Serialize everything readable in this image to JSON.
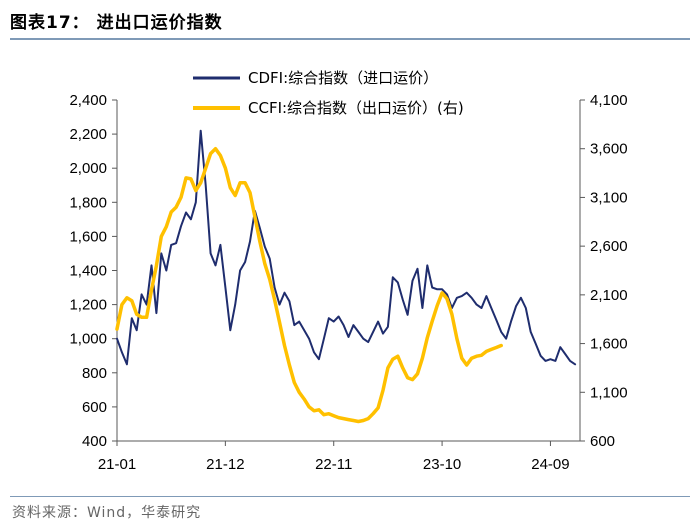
{
  "header": {
    "title": "图表17：  进出口运价指数"
  },
  "footer": {
    "source": "资料来源：Wind，华泰研究"
  },
  "chart_data": {
    "type": "line",
    "title": "进出口运价指数",
    "xlabel": "",
    "x_tick_labels": [
      "21-01",
      "21-12",
      "22-11",
      "23-10",
      "24-09"
    ],
    "x_tick_index": [
      0,
      11,
      22,
      33,
      44
    ],
    "x_end_index": 47,
    "y_left": {
      "lim": [
        400,
        2400
      ],
      "ticks": [
        400,
        600,
        800,
        1000,
        1200,
        1400,
        1600,
        1800,
        2000,
        2200,
        2400
      ],
      "tick_labels": [
        "400",
        "600",
        "800",
        "1,000",
        "1,200",
        "1,400",
        "1,600",
        "1,800",
        "2,000",
        "2,200",
        "2,400"
      ]
    },
    "y_right": {
      "lim": [
        600,
        4100
      ],
      "ticks": [
        600,
        1100,
        1600,
        2100,
        2600,
        3100,
        3600,
        4100
      ],
      "tick_labels": [
        "600",
        "1,100",
        "1,600",
        "2,100",
        "2,600",
        "3,100",
        "3,600",
        "4,100"
      ]
    },
    "legend": {
      "placement": "top-center"
    },
    "series": [
      {
        "name": "CDFI:综合指数（进口运价）",
        "axis": "left",
        "color": "#1f2d6e",
        "points": [
          [
            0,
            1000
          ],
          [
            0.5,
            920
          ],
          [
            1,
            850
          ],
          [
            1.5,
            1120
          ],
          [
            2,
            1050
          ],
          [
            2.5,
            1260
          ],
          [
            3,
            1200
          ],
          [
            3.5,
            1430
          ],
          [
            4,
            1150
          ],
          [
            4.5,
            1500
          ],
          [
            5,
            1400
          ],
          [
            5.5,
            1550
          ],
          [
            6,
            1560
          ],
          [
            6.5,
            1660
          ],
          [
            7,
            1740
          ],
          [
            7.5,
            1700
          ],
          [
            8,
            1800
          ],
          [
            8.5,
            2220
          ],
          [
            9,
            1900
          ],
          [
            9.5,
            1500
          ],
          [
            10,
            1430
          ],
          [
            10.5,
            1550
          ],
          [
            11,
            1300
          ],
          [
            11.5,
            1050
          ],
          [
            12,
            1200
          ],
          [
            12.5,
            1400
          ],
          [
            13,
            1450
          ],
          [
            13.5,
            1570
          ],
          [
            14,
            1750
          ],
          [
            14.5,
            1650
          ],
          [
            15,
            1540
          ],
          [
            15.5,
            1470
          ],
          [
            16,
            1300
          ],
          [
            16.5,
            1200
          ],
          [
            17,
            1270
          ],
          [
            17.5,
            1220
          ],
          [
            18,
            1080
          ],
          [
            18.5,
            1100
          ],
          [
            19,
            1050
          ],
          [
            19.5,
            1000
          ],
          [
            20,
            920
          ],
          [
            20.5,
            880
          ],
          [
            21,
            1000
          ],
          [
            21.5,
            1120
          ],
          [
            22,
            1100
          ],
          [
            22.5,
            1130
          ],
          [
            23,
            1080
          ],
          [
            23.5,
            1010
          ],
          [
            24,
            1080
          ],
          [
            24.5,
            1040
          ],
          [
            25,
            1000
          ],
          [
            25.5,
            980
          ],
          [
            26,
            1040
          ],
          [
            26.5,
            1100
          ],
          [
            27,
            1030
          ],
          [
            27.5,
            1070
          ],
          [
            28,
            1360
          ],
          [
            28.5,
            1330
          ],
          [
            29,
            1230
          ],
          [
            29.5,
            1140
          ],
          [
            30,
            1340
          ],
          [
            30.5,
            1410
          ],
          [
            31,
            1180
          ],
          [
            31.5,
            1430
          ],
          [
            32,
            1300
          ],
          [
            32.5,
            1290
          ],
          [
            33,
            1290
          ],
          [
            33.5,
            1260
          ],
          [
            34,
            1180
          ],
          [
            34.5,
            1240
          ],
          [
            35,
            1250
          ],
          [
            35.5,
            1270
          ],
          [
            36,
            1240
          ],
          [
            36.5,
            1200
          ],
          [
            37,
            1180
          ],
          [
            37.5,
            1250
          ],
          [
            38,
            1180
          ],
          [
            38.5,
            1110
          ],
          [
            39,
            1040
          ],
          [
            39.5,
            1000
          ],
          [
            40,
            1100
          ],
          [
            40.5,
            1190
          ],
          [
            41,
            1240
          ],
          [
            41.5,
            1180
          ],
          [
            42,
            1040
          ],
          [
            42.5,
            970
          ],
          [
            43,
            900
          ],
          [
            43.5,
            870
          ],
          [
            44,
            880
          ],
          [
            44.5,
            870
          ],
          [
            45,
            950
          ],
          [
            45.5,
            910
          ],
          [
            46,
            870
          ],
          [
            46.5,
            850
          ]
        ]
      },
      {
        "name": "CCFI:综合指数（出口运价）(右)",
        "axis": "right",
        "color": "#ffc000",
        "points": [
          [
            0,
            1750
          ],
          [
            0.5,
            2000
          ],
          [
            1,
            2070
          ],
          [
            1.5,
            2040
          ],
          [
            2,
            1900
          ],
          [
            2.5,
            1870
          ],
          [
            3,
            1870
          ],
          [
            3.5,
            2150
          ],
          [
            4,
            2400
          ],
          [
            4.5,
            2700
          ],
          [
            5,
            2800
          ],
          [
            5.5,
            2950
          ],
          [
            6,
            3000
          ],
          [
            6.5,
            3100
          ],
          [
            7,
            3300
          ],
          [
            7.5,
            3290
          ],
          [
            8,
            3170
          ],
          [
            8.5,
            3250
          ],
          [
            9,
            3400
          ],
          [
            9.5,
            3550
          ],
          [
            10,
            3600
          ],
          [
            10.5,
            3530
          ],
          [
            11,
            3400
          ],
          [
            11.5,
            3200
          ],
          [
            12,
            3120
          ],
          [
            12.5,
            3250
          ],
          [
            13,
            3250
          ],
          [
            13.5,
            3150
          ],
          [
            14,
            2900
          ],
          [
            14.5,
            2650
          ],
          [
            15,
            2420
          ],
          [
            15.5,
            2260
          ],
          [
            16,
            2050
          ],
          [
            16.5,
            1820
          ],
          [
            17,
            1580
          ],
          [
            17.5,
            1380
          ],
          [
            18,
            1200
          ],
          [
            18.5,
            1100
          ],
          [
            19,
            1030
          ],
          [
            19.5,
            950
          ],
          [
            20,
            910
          ],
          [
            20.5,
            920
          ],
          [
            21,
            870
          ],
          [
            21.5,
            880
          ],
          [
            22,
            860
          ],
          [
            22.5,
            840
          ],
          [
            23,
            830
          ],
          [
            23.5,
            820
          ],
          [
            24,
            810
          ],
          [
            24.5,
            800
          ],
          [
            25,
            810
          ],
          [
            25.5,
            830
          ],
          [
            26,
            880
          ],
          [
            26.5,
            940
          ],
          [
            27,
            1120
          ],
          [
            27.5,
            1350
          ],
          [
            28,
            1440
          ],
          [
            28.5,
            1470
          ],
          [
            29,
            1350
          ],
          [
            29.5,
            1250
          ],
          [
            30,
            1230
          ],
          [
            30.5,
            1290
          ],
          [
            31,
            1450
          ],
          [
            31.5,
            1660
          ],
          [
            32,
            1830
          ],
          [
            32.5,
            1990
          ],
          [
            33,
            2120
          ],
          [
            33.5,
            2060
          ],
          [
            34,
            1900
          ],
          [
            34.5,
            1650
          ],
          [
            35,
            1450
          ],
          [
            35.5,
            1380
          ],
          [
            36,
            1450
          ],
          [
            36.5,
            1470
          ],
          [
            37,
            1480
          ],
          [
            37.5,
            1520
          ],
          [
            38,
            1540
          ],
          [
            38.5,
            1560
          ],
          [
            39,
            1580
          ]
        ]
      }
    ]
  }
}
